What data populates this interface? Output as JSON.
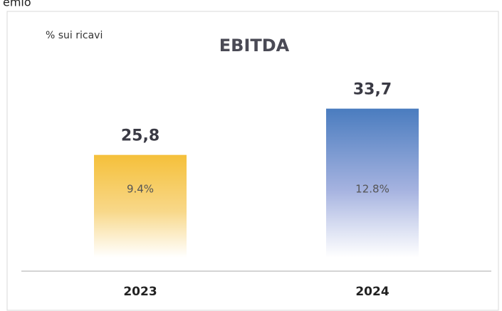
{
  "caption": "emio",
  "chart_data": {
    "type": "bar",
    "title": "EBITDA",
    "subtitle": "% sui ricavi",
    "categories": [
      "2023",
      "2024"
    ],
    "values": [
      25.8,
      33.7
    ],
    "value_labels": [
      "25,8",
      "33,7"
    ],
    "colors": [
      "#f5c03a",
      "#4a7cbf"
    ],
    "percent_values": [
      9.4,
      12.8
    ],
    "percent_labels": [
      "9.4%",
      "12.8%"
    ]
  }
}
